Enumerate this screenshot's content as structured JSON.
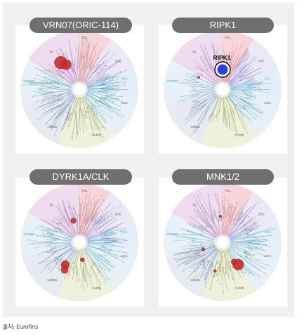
{
  "panels": [
    {
      "title": "VRN07(ORIC-114)",
      "highlight_label": ""
    },
    {
      "title": "RIPK1",
      "highlight_label": "RIPK1"
    },
    {
      "title": "DYRK1A/CLK",
      "highlight_label": ""
    },
    {
      "title": "MNK1/2",
      "highlight_label": ""
    }
  ],
  "groups": [
    "TK",
    "TKL",
    "STE",
    "CK1",
    "AGC",
    "CAMK",
    "CMGC",
    "OTHER"
  ],
  "source": "출처: Eurofins",
  "colors": {
    "pill": "#6f6f6f",
    "hit": "#c62828",
    "ripk1_marker": "#2f3fe0",
    "background": "#f0f0f0"
  }
}
